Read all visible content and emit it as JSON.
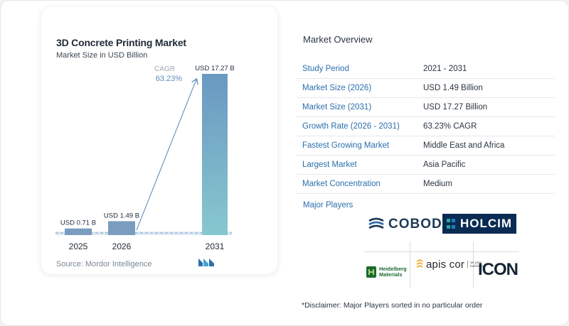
{
  "chart": {
    "title": "3D Concrete Printing Market",
    "subtitle": "Market Size in USD Billion",
    "cagr_label": "CAGR",
    "cagr_value": "63.23%",
    "source": "Source:  Mordor Intelligence"
  },
  "chart_data": {
    "type": "bar",
    "categories": [
      "2025",
      "2026",
      "2031"
    ],
    "values": [
      0.71,
      1.49,
      17.27
    ],
    "value_labels": [
      "USD 0.71 B",
      "USD 1.49 B",
      "USD 17.27 B"
    ],
    "title": "3D Concrete Printing Market",
    "subtitle": "Market Size in USD Billion",
    "xlabel": "",
    "ylabel": "",
    "ylim": [
      0,
      17.27
    ],
    "grid": false,
    "legend": "none",
    "annotations": [
      {
        "text": "CAGR 63.23%",
        "type": "arrow",
        "from": "2026",
        "to": "2031"
      }
    ],
    "colors": {
      "small_bars": "#7a9dbf",
      "large_bar_top": "#6a98c1",
      "large_bar_bottom": "#87c8cf",
      "baseline_band": "#dce9f5"
    }
  },
  "overview": {
    "title": "Market Overview",
    "rows": [
      {
        "key": "Study Period",
        "value": "2021 - 2031"
      },
      {
        "key": "Market Size (2026)",
        "value": "USD 1.49 Billion"
      },
      {
        "key": "Market Size (2031)",
        "value": "USD 17.27 Billion"
      },
      {
        "key": "Growth Rate (2026 - 2031)",
        "value": "63.23% CAGR"
      },
      {
        "key": "Fastest Growing Market",
        "value": "Middle East and Africa"
      },
      {
        "key": "Largest Market",
        "value": "Asia Pacific"
      },
      {
        "key": "Market Concentration",
        "value": "Medium"
      }
    ]
  },
  "players": {
    "label": "Major Players",
    "cobod": "COBOD",
    "holcim": "HOLCIM",
    "heidelberg_line1": "Heidelberg",
    "heidelberg_line2": "Materials",
    "apis": "apis cor",
    "apis_small_line1": "we print",
    "apis_small_line2": "buildings",
    "icon": "ICON"
  },
  "disclaimer": "*Disclaimer: Major Players sorted in no particular order"
}
